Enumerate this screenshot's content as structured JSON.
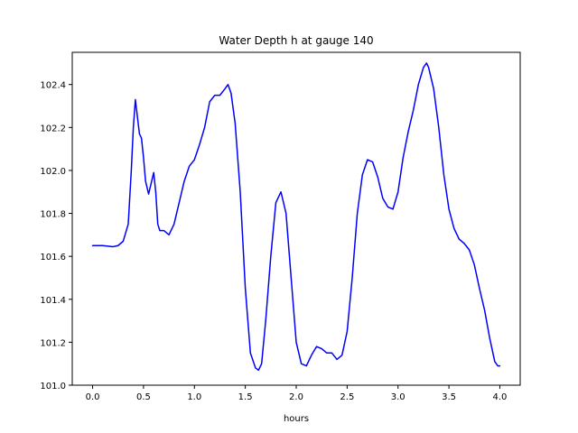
{
  "chart_data": {
    "type": "line",
    "title": "Water Depth h at gauge 140",
    "xlabel": "hours",
    "ylabel": "",
    "xlim": [
      -0.2,
      4.2
    ],
    "ylim": [
      101.0,
      102.55
    ],
    "xticks": [
      "0.0",
      "0.5",
      "1.0",
      "1.5",
      "2.0",
      "2.5",
      "3.0",
      "3.5",
      "4.0"
    ],
    "yticks": [
      "101.0",
      "101.2",
      "101.4",
      "101.6",
      "101.8",
      "102.0",
      "102.2",
      "102.4"
    ],
    "grid": false,
    "line_color": "#0000ff",
    "series": [
      {
        "x": [
          0.0,
          0.1,
          0.2,
          0.25,
          0.3,
          0.35,
          0.38,
          0.4,
          0.42,
          0.44,
          0.46,
          0.48,
          0.5,
          0.52,
          0.55,
          0.58,
          0.6,
          0.62,
          0.64,
          0.66,
          0.7,
          0.75,
          0.8,
          0.85,
          0.9,
          0.95,
          1.0,
          1.05,
          1.1,
          1.15,
          1.2,
          1.25,
          1.3,
          1.33,
          1.36,
          1.4,
          1.45,
          1.5,
          1.55,
          1.6,
          1.63,
          1.66,
          1.7,
          1.75,
          1.8,
          1.85,
          1.9,
          1.95,
          2.0,
          2.05,
          2.1,
          2.15,
          2.2,
          2.25,
          2.3,
          2.35,
          2.4,
          2.45,
          2.5,
          2.55,
          2.6,
          2.65,
          2.7,
          2.75,
          2.8,
          2.85,
          2.9,
          2.95,
          3.0,
          3.05,
          3.1,
          3.15,
          3.2,
          3.25,
          3.28,
          3.3,
          3.35,
          3.4,
          3.45,
          3.5,
          3.55,
          3.6,
          3.65,
          3.7,
          3.75,
          3.8,
          3.85,
          3.9,
          3.95,
          3.98,
          4.0
        ],
        "y": [
          101.65,
          101.65,
          101.645,
          101.65,
          101.67,
          101.75,
          102.0,
          102.2,
          102.33,
          102.25,
          102.17,
          102.15,
          102.06,
          101.95,
          101.89,
          101.95,
          101.99,
          101.9,
          101.75,
          101.72,
          101.72,
          101.7,
          101.75,
          101.85,
          101.95,
          102.02,
          102.05,
          102.12,
          102.2,
          102.32,
          102.35,
          102.35,
          102.38,
          102.4,
          102.36,
          102.22,
          101.9,
          101.45,
          101.15,
          101.08,
          101.07,
          101.1,
          101.3,
          101.6,
          101.85,
          101.9,
          101.8,
          101.5,
          101.2,
          101.1,
          101.09,
          101.14,
          101.18,
          101.17,
          101.15,
          101.15,
          101.12,
          101.14,
          101.25,
          101.5,
          101.8,
          101.98,
          102.05,
          102.04,
          101.97,
          101.87,
          101.83,
          101.82,
          101.9,
          102.06,
          102.18,
          102.28,
          102.4,
          102.48,
          102.5,
          102.48,
          102.38,
          102.2,
          101.98,
          101.82,
          101.73,
          101.68,
          101.66,
          101.63,
          101.56,
          101.45,
          101.35,
          101.22,
          101.11,
          101.09,
          101.09
        ]
      }
    ]
  }
}
